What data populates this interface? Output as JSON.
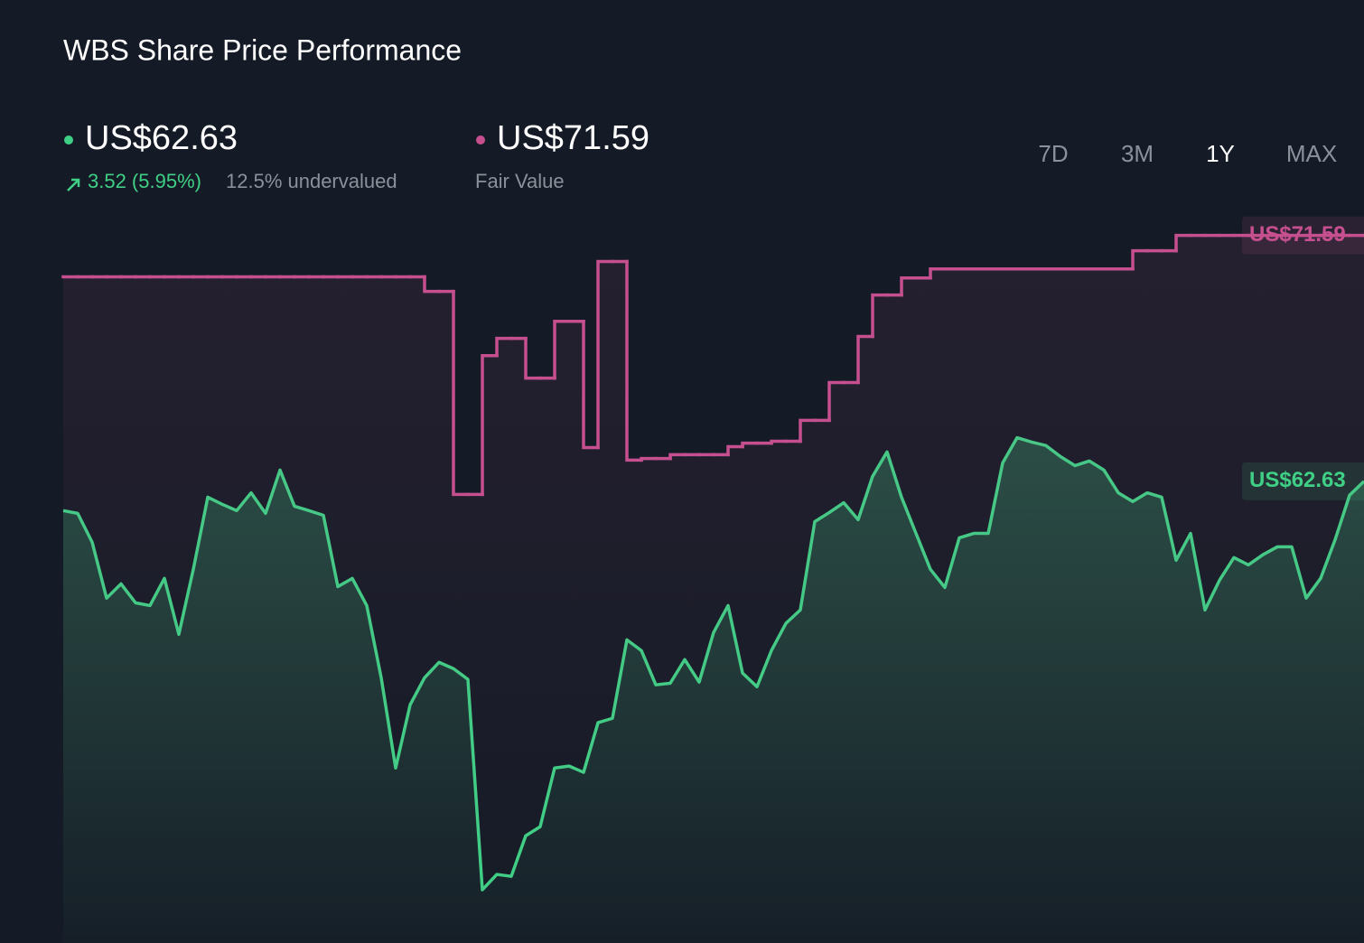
{
  "header": {
    "title": "WBS Share Price Performance",
    "price": "US$62.63",
    "change": "3.52 (5.95%)",
    "valuation": "12.5% undervalued",
    "fair_value": "US$71.59"
  },
  "timeframes": {
    "options": [
      "7D",
      "3M",
      "1Y",
      "MAX"
    ],
    "selected": "1Y"
  },
  "chart_data": {
    "type": "line",
    "ylim": [
      45.8,
      72.6
    ],
    "series": [
      {
        "color": "#3fcf85",
        "end_label": "US$62.63",
        "values": [
          61.56,
          61.46,
          60.41,
          58.37,
          58.89,
          58.2,
          58.1,
          59.09,
          57.05,
          59.42,
          62.05,
          61.79,
          61.56,
          62.21,
          61.46,
          63.04,
          61.72,
          61.56,
          61.39,
          58.79,
          59.09,
          58.1,
          55.47,
          52.18,
          54.48,
          55.47,
          56.03,
          55.8,
          55.41,
          47.74,
          48.3,
          48.23,
          49.71,
          50.04,
          52.18,
          52.25,
          52.02,
          53.83,
          53.99,
          56.85,
          56.46,
          55.21,
          55.27,
          56.13,
          55.31,
          57.12,
          58.1,
          55.64,
          55.14,
          56.46,
          57.45,
          57.94,
          61.16,
          61.49,
          61.85,
          61.23,
          62.81,
          63.7,
          62.05,
          60.73,
          59.42,
          58.76,
          60.57,
          60.73,
          60.73,
          63.3,
          64.22,
          64.06,
          63.93,
          63.53,
          63.2,
          63.37,
          63.04,
          62.21,
          61.89,
          62.21,
          62.05,
          59.75,
          60.73,
          57.94,
          59.02,
          59.85,
          59.58,
          59.95,
          60.24,
          60.24,
          58.37,
          59.09,
          60.5,
          62.12,
          62.63
        ]
      },
      {
        "name": "Fair Value",
        "color": "#c6508f",
        "drawstyle": "steps-post",
        "end_label": "US$71.59",
        "values": [
          70.08,
          70.08,
          70.08,
          70.08,
          70.08,
          70.08,
          70.08,
          70.08,
          70.08,
          70.08,
          70.08,
          70.08,
          70.08,
          70.08,
          70.08,
          70.08,
          70.08,
          70.08,
          70.08,
          70.08,
          70.08,
          70.08,
          70.08,
          70.08,
          70.08,
          69.55,
          69.55,
          62.15,
          62.15,
          67.21,
          67.84,
          67.84,
          66.39,
          66.39,
          68.46,
          68.46,
          63.86,
          70.64,
          70.64,
          63.4,
          63.46,
          63.46,
          63.6,
          63.6,
          63.6,
          63.6,
          63.89,
          64.02,
          64.02,
          64.09,
          64.09,
          64.85,
          64.85,
          66.23,
          66.23,
          67.91,
          69.42,
          69.42,
          70.04,
          70.04,
          70.37,
          70.37,
          70.37,
          70.37,
          70.37,
          70.37,
          70.37,
          70.37,
          70.37,
          70.37,
          70.37,
          70.37,
          70.37,
          70.37,
          71.03,
          71.03,
          71.03,
          71.59,
          71.59,
          71.59,
          71.59,
          71.59,
          71.59,
          71.59,
          71.59,
          71.59,
          71.59,
          71.59,
          71.59,
          71.59,
          71.59
        ]
      }
    ]
  }
}
